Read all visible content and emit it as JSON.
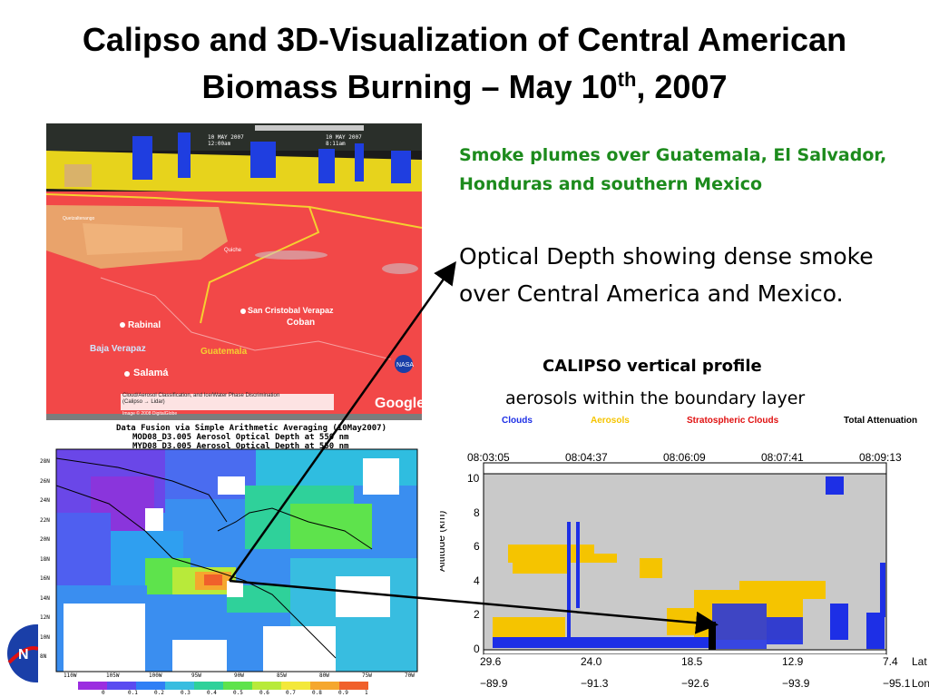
{
  "slide": {
    "title_line1": "Calipso and 3D-Visualization of Central American",
    "title_line2_pre": "Biomass Burning – May 10",
    "title_sup": "th",
    "title_line2_post": ", 2007"
  },
  "notes": {
    "smoke_plumes": "Smoke plumes over Guatemala, El Salvador,  Honduras and southern Mexico",
    "optical_depth": "Optical Depth showing dense smoke over Central America and Mexico.",
    "calipso_title": "CALIPSO vertical profile",
    "calipso_subtitle": "aerosols within the boundary layer"
  },
  "earth_view": {
    "time_left": "10 MAY 2007",
    "time_left_clock": "12:00am",
    "time_right": "10 MAY 2007",
    "time_right_clock": "8:11am",
    "places": [
      "Rabinal",
      "San Cristobal Verapaz",
      "Coban",
      "Baja Verapaz",
      "Guatemala",
      "Salamá",
      "Quiche",
      "Quetzaltenango"
    ],
    "caption_line1": "Cloud/Aerosol Classification, and Ice/Water Phase Discrimination",
    "caption_line2": "(Calipso → Lidar)",
    "credit": "Image © 2008 DigitalGlobe",
    "google": "Google",
    "nasa": "NASA"
  },
  "aod_map": {
    "title": "Data Fusion via Simple Arithmetic Averaging (10May2007)",
    "subtitle1": "MOD08_D3.005 Aerosol Optical Depth at 550 nm",
    "subtitle2": "MYD08_D3.005 Aerosol Optical Depth at 550 nm",
    "lat_labels": [
      "28N",
      "26N",
      "24N",
      "22N",
      "20N",
      "18N",
      "16N",
      "14N",
      "12N",
      "10N",
      "8N"
    ],
    "lon_labels": [
      "110W",
      "105W",
      "100W",
      "95W",
      "90W",
      "85W",
      "80W",
      "75W",
      "70W"
    ],
    "colorbar_labels": [
      "0",
      "0.1",
      "0.2",
      "0.3",
      "0.4",
      "0.5",
      "0.6",
      "0.7",
      "0.8",
      "0.9",
      "1"
    ],
    "colorbar_colors": [
      "#9b2de0",
      "#5a4bf0",
      "#2f7ff5",
      "#38bde0",
      "#2fd19a",
      "#5ee34c",
      "#b8ea3a",
      "#f3e83a",
      "#f5a72e",
      "#f0602b"
    ]
  },
  "calipso": {
    "legend": [
      {
        "label": "Clouds",
        "color": "#1d2fe6"
      },
      {
        "label": "Aerosols",
        "color": "#f5c400"
      },
      {
        "label": "Stratospheric Clouds",
        "color": "#e01010"
      },
      {
        "label": "Total Attenuation",
        "color": "#000000"
      }
    ],
    "times": [
      "08:03:05",
      "08:04:37",
      "08:06:09",
      "08:07:41",
      "08:09:13"
    ],
    "altitude_label": "Altitude  (km)",
    "altitude_ticks": [
      "10",
      "8",
      "6",
      "4",
      "2",
      "0"
    ],
    "lat_ticks": [
      "29.6",
      "24.0",
      "18.5",
      "12.9",
      "7.4"
    ],
    "lon_ticks": [
      "−89.9",
      "−91.3",
      "−92.6",
      "−93.9",
      "−95.1"
    ],
    "lat_label": "Lat",
    "lon_label": "Lon"
  }
}
